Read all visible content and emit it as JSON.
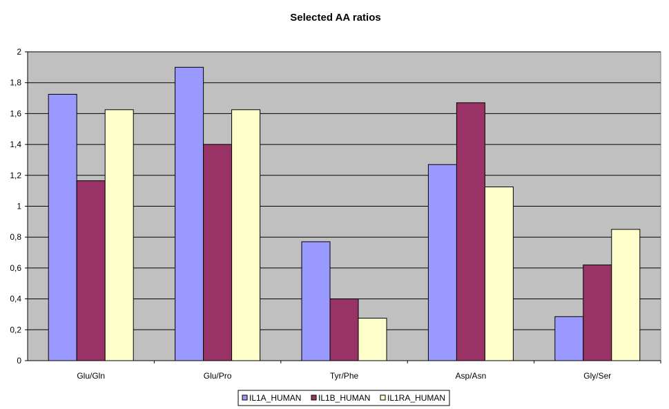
{
  "chart_data": {
    "type": "bar",
    "title": "Selected AA ratios",
    "xlabel": "",
    "ylabel": "",
    "categories": [
      "Glu/Gln",
      "Glu/Pro",
      "Tyr/Phe",
      "Asp/Asn",
      "Gly/Ser"
    ],
    "series": [
      {
        "name": "IL1A_HUMAN",
        "color": "#9999ff",
        "values": [
          1.725,
          1.9,
          0.77,
          1.27,
          0.285
        ]
      },
      {
        "name": "IL1B_HUMAN",
        "color": "#993366",
        "values": [
          1.165,
          1.4,
          0.4,
          1.67,
          0.62
        ]
      },
      {
        "name": "IL1RA_HUMAN",
        "color": "#ffffcc",
        "values": [
          1.625,
          1.625,
          0.275,
          1.125,
          0.85
        ]
      }
    ],
    "ylim": [
      0,
      2
    ],
    "yticks": [
      "0",
      "0,2",
      "0,4",
      "0,6",
      "0,8",
      "1",
      "1,2",
      "1,4",
      "1,6",
      "1,8",
      "2"
    ],
    "grid": true,
    "plot_background": "#c0c0c0",
    "legend_position": "bottom"
  }
}
